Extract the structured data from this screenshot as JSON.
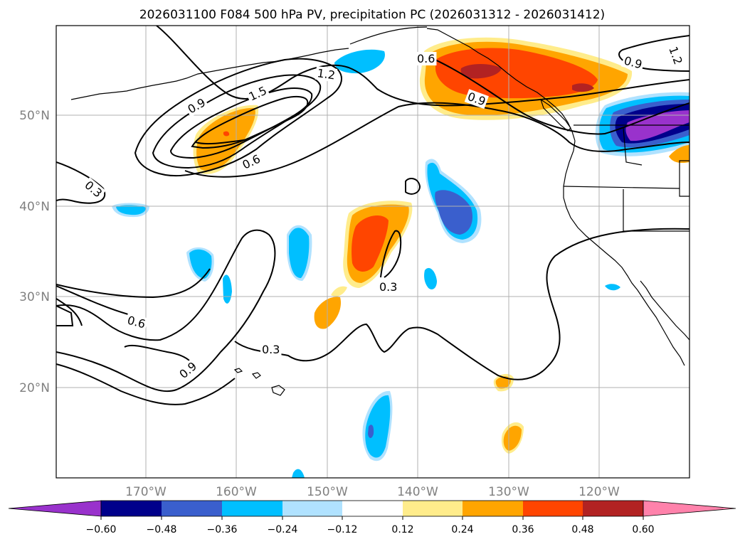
{
  "title": "2026031100 F084 500 hPa PV, precipitation PC (2026031312 - 2026031412)",
  "map": {
    "lon_ticks": [
      "170°W",
      "160°W",
      "150°W",
      "140°W",
      "130°W",
      "120°W"
    ],
    "lat_ticks": [
      "50°N",
      "40°N",
      "30°N",
      "20°N"
    ],
    "gridlines": true,
    "pv_contour_labels": [
      "0.3",
      "0.6",
      "0.9",
      "1.2",
      "1.5",
      "0.6",
      "0.9",
      "0.3",
      "0.6",
      "0.9",
      "0.3",
      "0.9",
      "1.2"
    ]
  },
  "colorbar": {
    "tick_labels": [
      "−0.60",
      "−0.48",
      "−0.36",
      "−0.24",
      "−0.12",
      "0.12",
      "0.24",
      "0.36",
      "0.48",
      "0.60"
    ],
    "colors": [
      "#9932CC",
      "#00008B",
      "#3A5FCD",
      "#00BFFF",
      "#B0E2FF",
      "#FFFFFF",
      "#FFEC8B",
      "#FFA500",
      "#FF4500",
      "#B22222",
      "#FF82AB"
    ]
  }
}
